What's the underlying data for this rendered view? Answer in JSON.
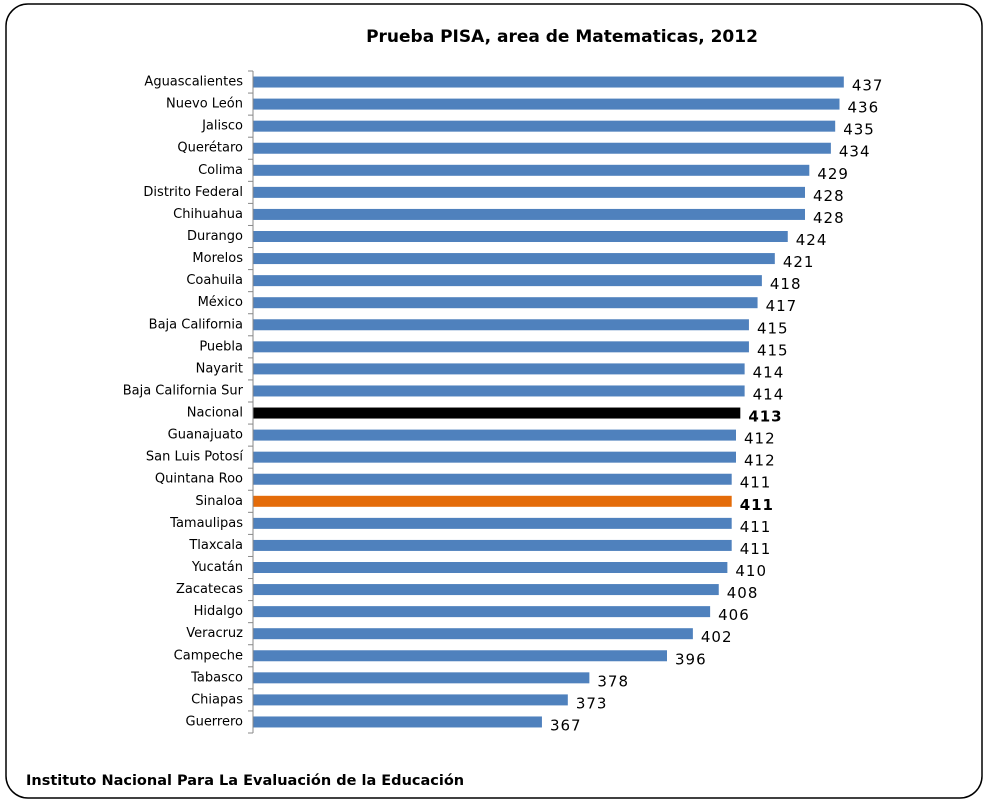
{
  "chart_data": {
    "type": "hbar",
    "title": "Prueba PISA, area de Matematicas, 2012",
    "source": "Instituto Nacional  Para La  Evaluación  de la Educación",
    "categories": [
      "Aguascalientes",
      "Nuevo León",
      "Jalisco",
      "Querétaro",
      "Colima",
      "Distrito Federal",
      "Chihuahua",
      "Durango",
      "Morelos",
      "Coahuila",
      "México",
      "Baja California",
      "Puebla",
      "Nayarit",
      "Baja California Sur",
      "Nacional",
      "Guanajuato",
      "San Luis Potosí",
      "Quintana Roo",
      "Sinaloa",
      "Tamaulipas",
      "Tlaxcala",
      "Yucatán",
      "Zacatecas",
      "Hidalgo",
      "Veracruz",
      "Campeche",
      "Tabasco",
      "Chiapas",
      "Guerrero"
    ],
    "values": [
      437,
      436,
      435,
      434,
      429,
      428,
      428,
      424,
      421,
      418,
      417,
      415,
      415,
      414,
      414,
      413,
      412,
      412,
      411,
      411,
      411,
      411,
      410,
      408,
      406,
      402,
      396,
      378,
      373,
      367
    ],
    "color": "#4f81bd",
    "colors": [
      "#4f81bd",
      "#4f81bd",
      "#4f81bd",
      "#4f81bd",
      "#4f81bd",
      "#4f81bd",
      "#4f81bd",
      "#4f81bd",
      "#4f81bd",
      "#4f81bd",
      "#4f81bd",
      "#4f81bd",
      "#4f81bd",
      "#4f81bd",
      "#4f81bd",
      "#000000",
      "#4f81bd",
      "#4f81bd",
      "#4f81bd",
      "#e46c0a",
      "#4f81bd",
      "#4f81bd",
      "#4f81bd",
      "#4f81bd",
      "#4f81bd",
      "#4f81bd",
      "#4f81bd",
      "#4f81bd",
      "#4f81bd",
      "#4f81bd"
    ],
    "xlim": [
      300,
      460
    ]
  }
}
